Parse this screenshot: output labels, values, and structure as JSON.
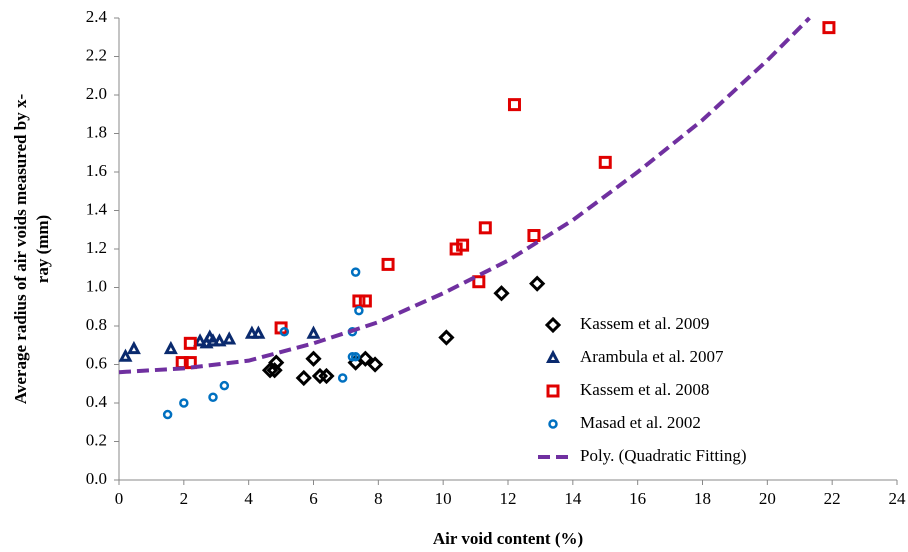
{
  "chart_data": {
    "type": "scatter",
    "xlabel": "Air void content (%)",
    "ylabel": [
      "Average radius of air voids  measured by x-",
      "ray (mm)"
    ],
    "xlim": [
      0,
      24
    ],
    "xticks": [
      0,
      2,
      4,
      6,
      8,
      10,
      12,
      14,
      16,
      18,
      20,
      22,
      24
    ],
    "ylim": [
      0,
      2.4
    ],
    "yticks": [
      {
        "value": 0,
        "label": "0.0"
      },
      {
        "value": 0.2,
        "label": "0.2"
      },
      {
        "value": 0.4,
        "label": "0.4"
      },
      {
        "value": 0.6,
        "label": "0.6"
      },
      {
        "value": 0.8,
        "label": "0.8"
      },
      {
        "value": 1,
        "label": "1.0"
      },
      {
        "value": 1.2,
        "label": "1.2"
      },
      {
        "value": 1.4,
        "label": "1.4"
      },
      {
        "value": 1.6,
        "label": "1.6"
      },
      {
        "value": 1.8,
        "label": "1.8"
      },
      {
        "value": 2,
        "label": "2.0"
      },
      {
        "value": 2.2,
        "label": "2.2"
      },
      {
        "value": 2.4,
        "label": "2.4"
      }
    ],
    "grid": false,
    "series": [
      {
        "name": "Kassem et al. 2009",
        "marker": "diamond",
        "color": "#000000",
        "x": [
          4.66,
          4.85,
          4.8,
          6.0,
          5.7,
          6.2,
          6.4,
          7.3,
          7.6,
          7.9,
          10.1,
          11.8,
          12.9
        ],
        "values": [
          0.57,
          0.61,
          0.57,
          0.63,
          0.53,
          0.54,
          0.54,
          0.61,
          0.63,
          0.6,
          0.74,
          0.97,
          1.02
        ]
      },
      {
        "name": "Arambula et al. 2007",
        "marker": "triangle",
        "color": "#0a2a6e",
        "x": [
          0.2,
          0.46,
          1.6,
          2.5,
          2.7,
          2.8,
          2.9,
          3.1,
          3.4,
          4.1,
          4.3,
          6.0
        ],
        "values": [
          0.64,
          0.68,
          0.68,
          0.72,
          0.71,
          0.74,
          0.72,
          0.72,
          0.73,
          0.76,
          0.76,
          0.76
        ]
      },
      {
        "name": "Kassem et al. 2008",
        "marker": "square",
        "color": "#e00000",
        "x": [
          1.95,
          2.2,
          2.2,
          5.0,
          7.4,
          7.6,
          8.3,
          10.4,
          10.6,
          11.1,
          11.3,
          12.2,
          12.8,
          15.0,
          21.9
        ],
        "values": [
          0.61,
          0.61,
          0.71,
          0.79,
          0.93,
          0.93,
          1.12,
          1.2,
          1.22,
          1.03,
          1.31,
          1.95,
          1.27,
          1.65,
          2.35
        ]
      },
      {
        "name": "Masad et al. 2002",
        "marker": "circle",
        "color": "#0070c0",
        "x": [
          1.5,
          2.0,
          2.9,
          3.25,
          5.1,
          6.9,
          7.2,
          7.3,
          7.2,
          7.3,
          7.4
        ],
        "values": [
          0.34,
          0.4,
          0.43,
          0.49,
          0.77,
          0.53,
          0.64,
          0.64,
          0.77,
          1.08,
          0.88
        ]
      },
      {
        "name": "Poly. (Quadratic Fitting)",
        "marker": "dash-line",
        "color": "#7030a0",
        "x": [
          0,
          2,
          4,
          6,
          8,
          10,
          12,
          14,
          16,
          18,
          20,
          21.3
        ],
        "values": [
          0.56,
          0.58,
          0.62,
          0.71,
          0.82,
          0.97,
          1.14,
          1.35,
          1.6,
          1.87,
          2.18,
          2.4
        ]
      }
    ]
  }
}
